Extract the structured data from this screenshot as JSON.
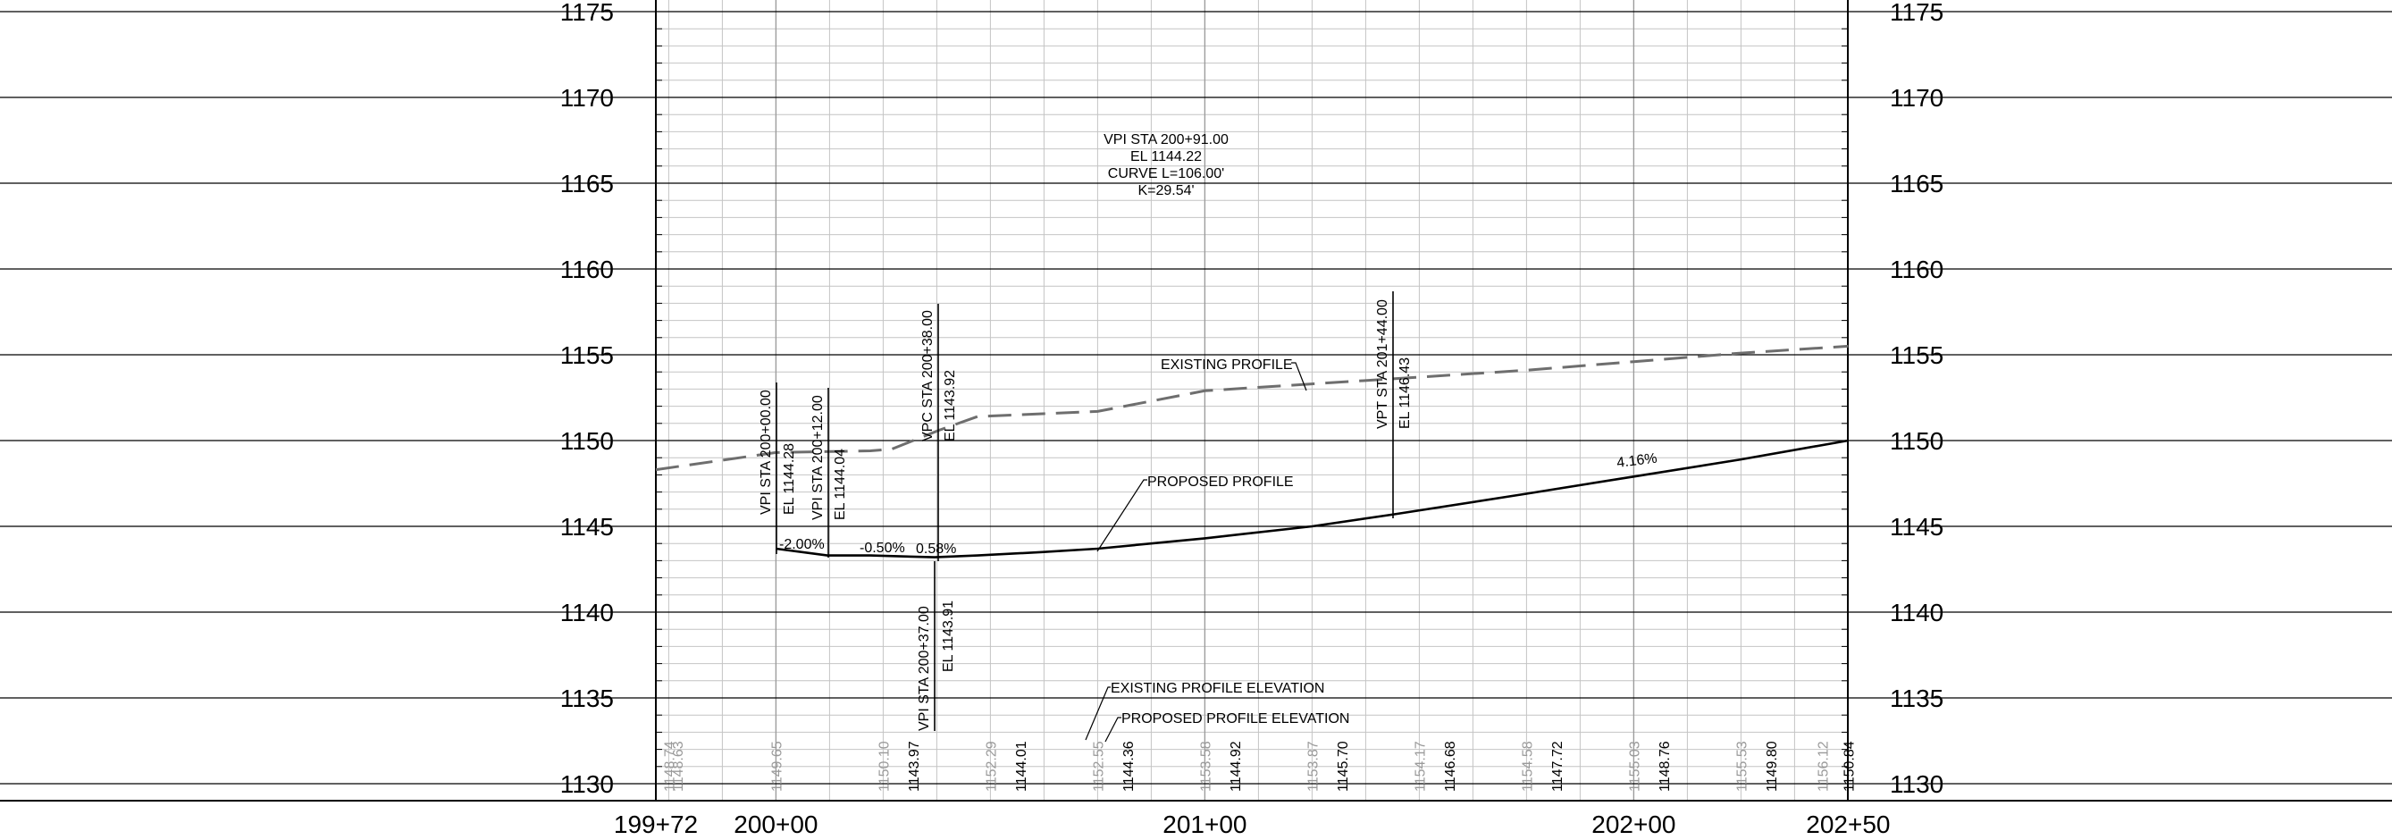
{
  "elevation_labels": [
    "1175",
    "1170",
    "1165",
    "1160",
    "1155",
    "1150",
    "1145",
    "1140",
    "1135",
    "1130"
  ],
  "station_labels": [
    "199+72",
    "200+00",
    "201+00",
    "202+00",
    "202+50"
  ],
  "curve_callout": {
    "line1": "VPI STA 200+91.00",
    "line2": "EL 1144.22",
    "line3": "CURVE L=106.00'",
    "line4": "K=29.54'"
  },
  "labels": {
    "existing_profile": "EXISTING PROFILE",
    "proposed_profile": "PROPOSED PROFILE",
    "existing_profile_elevation": "EXISTING PROFILE ELEVATION",
    "proposed_profile_elevation": "PROPOSED PROFILE ELEVATION"
  },
  "grades": {
    "g1": "-2.00%",
    "g2": "-0.50%",
    "g3": "0.58%",
    "g4": "4.16%"
  },
  "vertical_callouts": {
    "vpi1_sta": "VPI STA 200+00.00",
    "vpi1_el": "EL 1144.28",
    "vpi2_sta": "VPI STA 200+12.00",
    "vpi2_el": "EL 1144.04",
    "vpc_sta": "VPC STA 200+38.00",
    "vpc_el": "EL 1143.92",
    "vpi3_sta": "VPI STA 200+37.00",
    "vpi3_el": "EL 1143.91",
    "vpt_sta": "VPT STA 201+44.00",
    "vpt_el": "EL 1146.43"
  },
  "bottom_cells": [
    {
      "text": "1148.74",
      "kind": "existing",
      "sta": 3
    },
    {
      "text": "1148.63",
      "kind": "existing",
      "sta": 5
    },
    {
      "text": "1149.65",
      "kind": "existing",
      "sta": 28
    },
    {
      "text": "1150.10",
      "kind": "existing",
      "sta": 53
    },
    {
      "text": "1143.97",
      "kind": "proposed",
      "sta": 60
    },
    {
      "text": "1152.29",
      "kind": "existing",
      "sta": 78
    },
    {
      "text": "1144.01",
      "kind": "proposed",
      "sta": 85
    },
    {
      "text": "1152.55",
      "kind": "existing",
      "sta": 103
    },
    {
      "text": "1144.36",
      "kind": "proposed",
      "sta": 110
    },
    {
      "text": "1153.58",
      "kind": "existing",
      "sta": 128
    },
    {
      "text": "1144.92",
      "kind": "proposed",
      "sta": 135
    },
    {
      "text": "1153.87",
      "kind": "existing",
      "sta": 153
    },
    {
      "text": "1145.70",
      "kind": "proposed",
      "sta": 160
    },
    {
      "text": "1154.17",
      "kind": "existing",
      "sta": 178
    },
    {
      "text": "1146.68",
      "kind": "proposed",
      "sta": 185
    },
    {
      "text": "1154.58",
      "kind": "existing",
      "sta": 203
    },
    {
      "text": "1147.72",
      "kind": "proposed",
      "sta": 210
    },
    {
      "text": "1155.03",
      "kind": "existing",
      "sta": 228
    },
    {
      "text": "1148.76",
      "kind": "proposed",
      "sta": 235
    },
    {
      "text": "1155.53",
      "kind": "existing",
      "sta": 253
    },
    {
      "text": "1149.80",
      "kind": "proposed",
      "sta": 260
    },
    {
      "text": "1156.12",
      "kind": "existing",
      "sta": 272
    },
    {
      "text": "1150.84",
      "kind": "proposed",
      "sta": 278
    }
  ],
  "existing_profile_points": [
    {
      "sta": 0,
      "el": 1148.3
    },
    {
      "sta": 28,
      "el": 1149.3
    },
    {
      "sta": 50,
      "el": 1149.4
    },
    {
      "sta": 55,
      "el": 1149.5
    },
    {
      "sta": 66,
      "el": 1150.6
    },
    {
      "sta": 75,
      "el": 1151.4
    },
    {
      "sta": 103,
      "el": 1151.7
    },
    {
      "sta": 128,
      "el": 1152.9
    },
    {
      "sta": 153,
      "el": 1153.3
    },
    {
      "sta": 178,
      "el": 1153.7
    },
    {
      "sta": 203,
      "el": 1154.1
    },
    {
      "sta": 228,
      "el": 1154.6
    },
    {
      "sta": 253,
      "el": 1155.1
    },
    {
      "sta": 278,
      "el": 1155.5
    }
  ],
  "proposed_profile_points": [
    {
      "sta": 28,
      "el": 1143.7
    },
    {
      "sta": 40,
      "el": 1143.3
    },
    {
      "sta": 50,
      "el": 1143.3
    },
    {
      "sta": 65,
      "el": 1143.2
    },
    {
      "sta": 75,
      "el": 1143.3
    },
    {
      "sta": 90,
      "el": 1143.5
    },
    {
      "sta": 103,
      "el": 1143.7
    },
    {
      "sta": 128,
      "el": 1144.3
    },
    {
      "sta": 153,
      "el": 1145.0
    },
    {
      "sta": 172,
      "el": 1145.7
    },
    {
      "sta": 203,
      "el": 1146.9
    },
    {
      "sta": 228,
      "el": 1147.9
    },
    {
      "sta": 253,
      "el": 1148.9
    },
    {
      "sta": 278,
      "el": 1150.0
    }
  ]
}
